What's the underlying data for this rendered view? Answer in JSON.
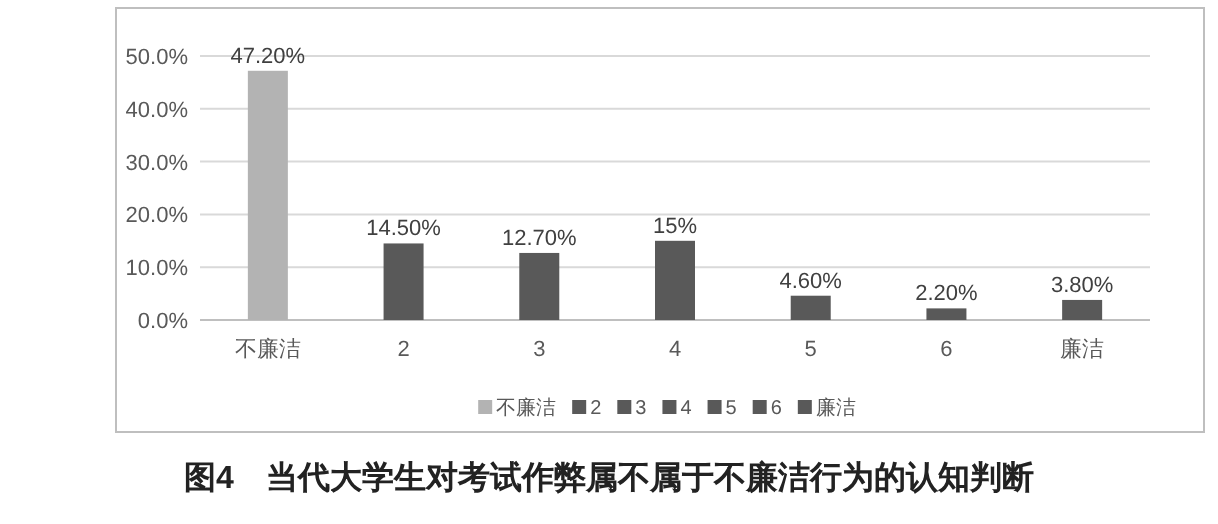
{
  "chart_data": {
    "type": "bar",
    "title": "图4　当代大学生对考试作弊属不属于不廉洁行为的认知判断",
    "categories": [
      "不廉洁",
      "2",
      "3",
      "4",
      "5",
      "6",
      "廉洁"
    ],
    "series": [
      {
        "name": "不廉洁",
        "color": "#b3b3b3",
        "values": [
          47.2,
          null,
          null,
          null,
          null,
          null,
          null
        ]
      },
      {
        "name": "2",
        "color": "#595959",
        "values": [
          null,
          14.5,
          null,
          null,
          null,
          null,
          null
        ]
      },
      {
        "name": "3",
        "color": "#595959",
        "values": [
          null,
          null,
          12.7,
          null,
          null,
          null,
          null
        ]
      },
      {
        "name": "4",
        "color": "#595959",
        "values": [
          null,
          null,
          null,
          15,
          null,
          null,
          null
        ]
      },
      {
        "name": "5",
        "color": "#595959",
        "values": [
          null,
          null,
          null,
          null,
          4.6,
          null,
          null
        ]
      },
      {
        "name": "6",
        "color": "#595959",
        "values": [
          null,
          null,
          null,
          null,
          null,
          2.2,
          null
        ]
      },
      {
        "name": "廉洁",
        "color": "#595959",
        "values": [
          null,
          null,
          null,
          null,
          null,
          null,
          3.8
        ]
      }
    ],
    "value_labels": [
      "47.20%",
      "14.50%",
      "12.70%",
      "15%",
      "4.60%",
      "2.20%",
      "3.80%"
    ],
    "ylim": [
      0,
      50
    ],
    "yticks": [
      {
        "value": 0,
        "label": "0.0%"
      },
      {
        "value": 10,
        "label": "10.0%"
      },
      {
        "value": 20,
        "label": "20.0%"
      },
      {
        "value": 30,
        "label": "30.0%"
      },
      {
        "value": 40,
        "label": "40.0%"
      },
      {
        "value": 50,
        "label": "50.0%"
      }
    ],
    "grid": "y",
    "legend": "bottom"
  }
}
